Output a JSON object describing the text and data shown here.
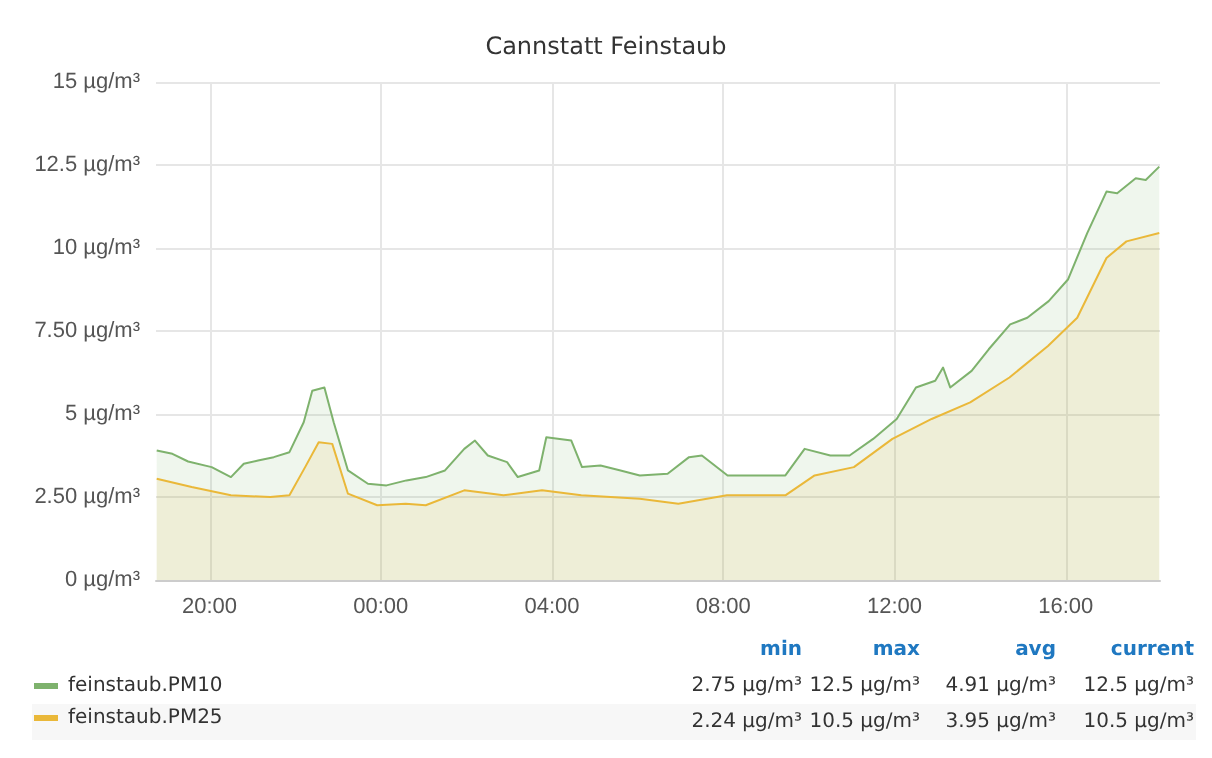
{
  "chart_data": {
    "type": "area",
    "title": "Cannstatt Feinstaub",
    "xlim": [
      "--01-01T18:45",
      "--01-02T18:12"
    ],
    "xticks": [
      {
        "value": "--01-01T20:00",
        "label": "20:00"
      },
      {
        "value": "--01-02T00:00",
        "label": "00:00"
      },
      {
        "value": "--01-02T04:00",
        "label": "04:00"
      },
      {
        "value": "--01-02T08:00",
        "label": "08:00"
      },
      {
        "value": "--01-02T12:00",
        "label": "12:00"
      },
      {
        "value": "--01-02T16:00",
        "label": "16:00"
      }
    ],
    "ylim": [
      0,
      15
    ],
    "yticks": [
      {
        "value": 0,
        "label": "0 µg/m³"
      },
      {
        "value": 2.5,
        "label": "2.50 µg/m³"
      },
      {
        "value": 5,
        "label": "5 µg/m³"
      },
      {
        "value": 7.5,
        "label": "7.50 µg/m³"
      },
      {
        "value": 10,
        "label": "10 µg/m³"
      },
      {
        "value": 12.5,
        "label": "12.5 µg/m³"
      },
      {
        "value": 15,
        "label": "15 µg/m³"
      }
    ],
    "grid": true,
    "legend": "bottom left",
    "series": [
      {
        "name": "feinstaub.PM10",
        "color": "#7eb26d",
        "x": [
          "--01-01T18:46",
          "--01-01T19:08",
          "--01-01T19:30",
          "--01-01T20:03",
          "--01-01T20:30",
          "--01-01T20:48",
          "--01-01T21:08",
          "--01-01T21:30",
          "--01-01T21:52",
          "--01-01T22:12",
          "--01-01T22:24",
          "--01-01T22:41",
          "--01-01T22:54",
          "--01-01T23:14",
          "--01-01T23:42",
          "--01-02T00:08",
          "--01-02T00:36",
          "--01-02T01:03",
          "--01-02T01:30",
          "--01-02T01:57",
          "--01-02T02:12",
          "--01-02T02:30",
          "--01-02T02:57",
          "--01-02T03:12",
          "--01-02T03:42",
          "--01-02T03:52",
          "--01-02T04:27",
          "--01-02T04:42",
          "--01-02T05:08",
          "--01-02T05:36",
          "--01-02T06:03",
          "--01-02T06:42",
          "--01-02T07:12",
          "--01-02T07:30",
          "--01-02T08:06",
          "--01-02T08:48",
          "--01-02T09:27",
          "--01-02T09:54",
          "--01-02T10:30",
          "--01-02T10:57",
          "--01-02T11:30",
          "--01-02T12:03",
          "--01-02T12:30",
          "--01-02T12:57",
          "--01-02T13:08",
          "--01-02T13:18",
          "--01-02T13:48",
          "--01-02T14:12",
          "--01-02T14:42",
          "--01-02T15:06",
          "--01-02T15:36",
          "--01-02T16:03",
          "--01-02T16:30",
          "--01-02T16:57",
          "--01-02T17:12",
          "--01-02T17:38",
          "--01-02T17:52",
          "--01-02T18:11"
        ],
        "values": [
          3.9,
          3.8,
          3.57,
          3.4,
          3.1,
          3.5,
          3.6,
          3.7,
          3.85,
          4.75,
          5.7,
          5.8,
          4.75,
          3.3,
          2.9,
          2.85,
          3.0,
          3.1,
          3.3,
          3.95,
          4.2,
          3.75,
          3.55,
          3.1,
          3.3,
          4.3,
          4.2,
          3.4,
          3.45,
          3.3,
          3.15,
          3.2,
          3.7,
          3.75,
          3.15,
          3.15,
          3.15,
          3.95,
          3.75,
          3.75,
          4.25,
          4.85,
          5.8,
          6.0,
          6.4,
          5.8,
          6.3,
          6.95,
          7.7,
          7.9,
          8.4,
          9.05,
          10.45,
          11.7,
          11.65,
          12.1,
          12.05,
          12.45
        ]
      },
      {
        "name": "feinstaub.PM25",
        "color": "#eab839",
        "x": [
          "--01-01T18:46",
          "--01-01T19:35",
          "--01-01T20:30",
          "--01-01T21:25",
          "--01-01T21:52",
          "--01-01T22:14",
          "--01-01T22:33",
          "--01-01T22:52",
          "--01-01T23:14",
          "--01-01T23:55",
          "--01-02T00:35",
          "--01-02T01:03",
          "--01-02T01:57",
          "--01-02T02:52",
          "--01-02T03:46",
          "--01-02T04:41",
          "--01-02T06:03",
          "--01-02T06:57",
          "--01-02T08:05",
          "--01-02T09:27",
          "--01-02T10:08",
          "--01-02T11:03",
          "--01-02T11:57",
          "--01-02T12:52",
          "--01-02T13:46",
          "--01-02T14:41",
          "--01-02T15:35",
          "--01-02T16:16",
          "--01-02T16:57",
          "--01-02T17:25",
          "--01-02T18:11"
        ],
        "values": [
          3.05,
          2.8,
          2.55,
          2.5,
          2.55,
          3.4,
          4.15,
          4.1,
          2.6,
          2.25,
          2.3,
          2.25,
          2.7,
          2.55,
          2.7,
          2.55,
          2.45,
          2.3,
          2.55,
          2.55,
          3.15,
          3.4,
          4.25,
          4.85,
          5.35,
          6.1,
          7.05,
          7.9,
          9.7,
          10.2,
          10.45
        ]
      }
    ],
    "annotations": [
      "min",
      "max",
      "avg",
      "current",
      "2.75 µg/m³",
      "12.5 µg/m³",
      "4.91 µg/m³",
      "12.5 µg/m³",
      "2.24 µg/m³",
      "10.5 µg/m³",
      "3.95 µg/m³",
      "10.5 µg/m³"
    ]
  }
}
